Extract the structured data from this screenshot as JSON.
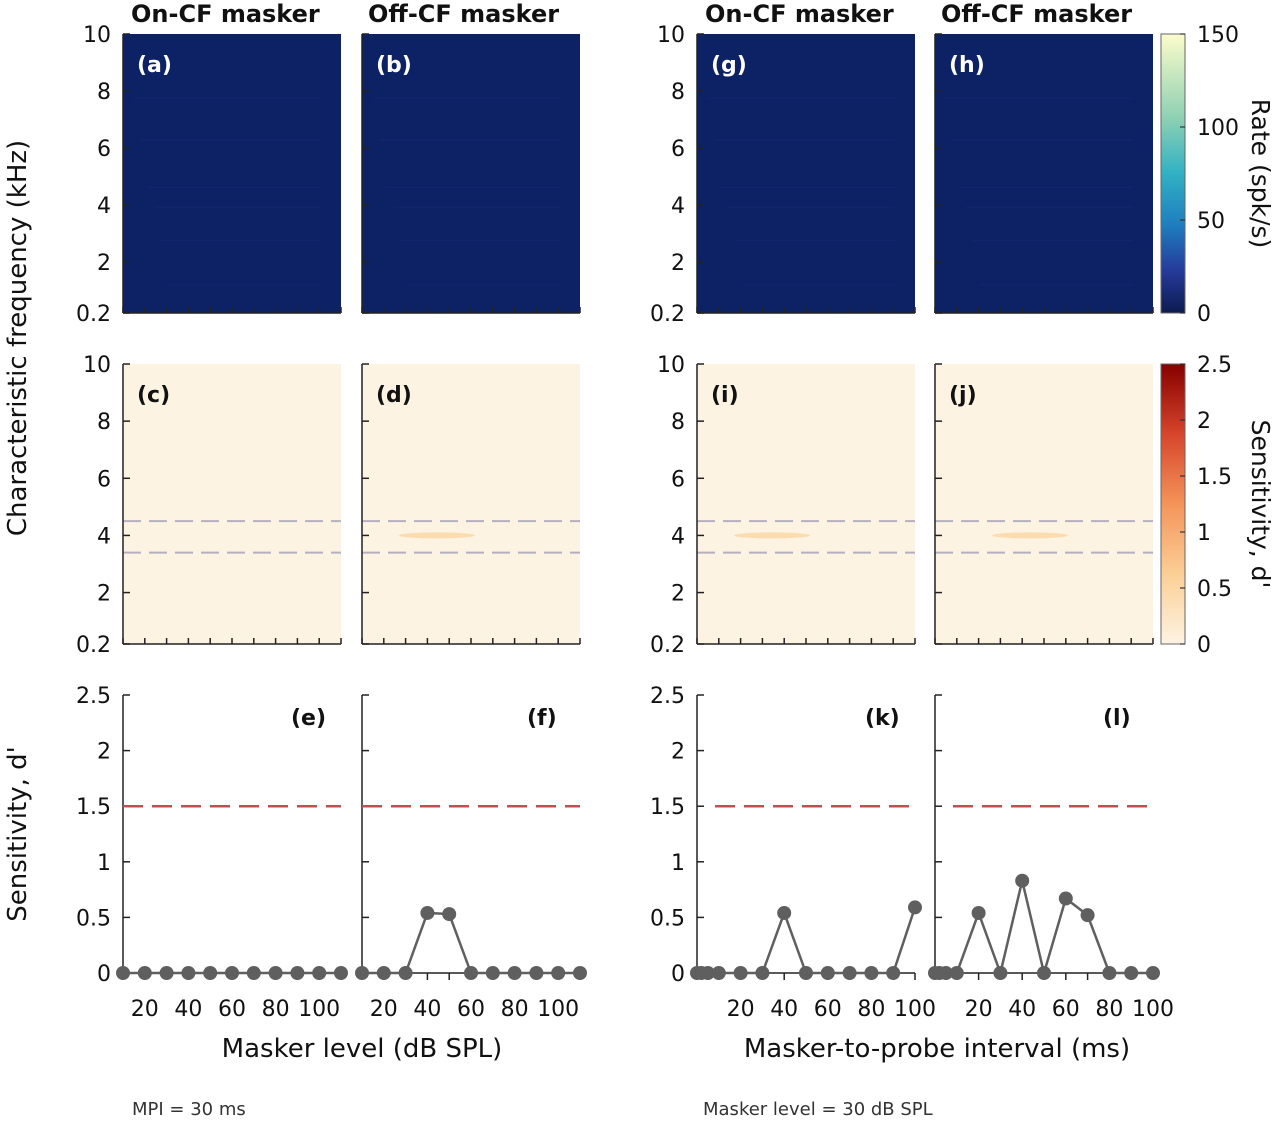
{
  "notes": {
    "left": "MPI = 30 ms",
    "right": "Masker level = 30 dB SPL"
  },
  "labels": {
    "col_on": "On-CF masker",
    "col_off": "Off-CF masker",
    "ylabel_cf": "Characteristic frequency (kHz)",
    "ylabel_sens": "Sensitivity, d'",
    "xlabel_left": "Masker level (dB SPL)",
    "xlabel_right": "Masker-to-probe interval (ms)",
    "cbar_rate": "Rate (spk/s)",
    "cbar_sens": "Sensitivity, d'"
  },
  "colors": {
    "rate_bg": "#0d2165",
    "sens_bg": "#fdf3e3",
    "line": "#5f5f5f",
    "threshold": "#c0504d",
    "band": "#b4b0bf"
  },
  "chart_data": [
    {
      "panel": "a",
      "type": "heatmap",
      "column_title": "On-CF masker",
      "ylabel": "Characteristic frequency (kHz)",
      "yticks": [
        "0.2",
        "2",
        "4",
        "6",
        "8",
        "10"
      ],
      "ylim": [
        0.2,
        10
      ],
      "xlim": [
        10,
        110
      ],
      "value": "approximately 0 across the panel",
      "colorbar": {
        "label": "Rate (spk/s)",
        "range": [
          0,
          150
        ],
        "ticks": [
          "0",
          "50",
          "100",
          "150"
        ]
      }
    },
    {
      "panel": "b",
      "type": "heatmap",
      "column_title": "Off-CF masker",
      "ylim": [
        0.2,
        10
      ],
      "xlim": [
        10,
        110
      ],
      "value": "approximately 0 across the panel",
      "colorbar": {
        "label": "Rate (spk/s)",
        "range": [
          0,
          150
        ]
      }
    },
    {
      "panel": "g",
      "type": "heatmap",
      "column_title": "On-CF masker",
      "yticks": [
        "0.2",
        "2",
        "4",
        "6",
        "8",
        "10"
      ],
      "ylim": [
        0.2,
        10
      ],
      "xlim": [
        0,
        100
      ],
      "value": "approximately 0 across the panel",
      "colorbar": {
        "label": "Rate (spk/s)",
        "range": [
          0,
          150
        ]
      }
    },
    {
      "panel": "h",
      "type": "heatmap",
      "column_title": "Off-CF masker",
      "ylim": [
        0.2,
        10
      ],
      "xlim": [
        0,
        100
      ],
      "value": "approximately 0 across the panel",
      "colorbar": {
        "label": "Rate (spk/s)",
        "range": [
          0,
          150
        ],
        "ticks": [
          "0",
          "50",
          "100",
          "150"
        ]
      }
    },
    {
      "panel": "c",
      "type": "heatmap",
      "ylabel": "Characteristic frequency (kHz)",
      "yticks": [
        "0.2",
        "2",
        "4",
        "6",
        "8",
        "10"
      ],
      "ylim": [
        0.2,
        10
      ],
      "xlim": [
        10,
        110
      ],
      "value": "approximately 0",
      "band_lines_khz": [
        3.4,
        4.5
      ],
      "colorbar": {
        "label": "Sensitivity, d'",
        "range": [
          0,
          2.5
        ],
        "ticks": [
          "0",
          "0.5",
          "1",
          "1.5",
          "2",
          "2.5"
        ]
      }
    },
    {
      "panel": "d",
      "type": "heatmap",
      "ylim": [
        0.2,
        10
      ],
      "xlim": [
        10,
        110
      ],
      "value": "approximately 0, faint patch near 4 kHz",
      "band_lines_khz": [
        3.4,
        4.5
      ],
      "colorbar": {
        "label": "Sensitivity, d'",
        "range": [
          0,
          2.5
        ]
      }
    },
    {
      "panel": "i",
      "type": "heatmap",
      "yticks": [
        "0.2",
        "2",
        "4",
        "6",
        "8",
        "10"
      ],
      "ylim": [
        0.2,
        10
      ],
      "xlim": [
        0,
        100
      ],
      "value": "approximately 0, faint patch near 4 kHz",
      "band_lines_khz": [
        3.4,
        4.5
      ],
      "colorbar": {
        "label": "Sensitivity, d'",
        "range": [
          0,
          2.5
        ]
      }
    },
    {
      "panel": "j",
      "type": "heatmap",
      "ylim": [
        0.2,
        10
      ],
      "xlim": [
        0,
        100
      ],
      "value": "approximately 0, faint patches near 4 kHz",
      "band_lines_khz": [
        3.4,
        4.5
      ],
      "colorbar": {
        "label": "Sensitivity, d'",
        "range": [
          0,
          2.5
        ],
        "ticks": [
          "0",
          "0.5",
          "1",
          "1.5",
          "2",
          "2.5"
        ]
      }
    },
    {
      "panel": "e",
      "type": "line",
      "ylabel": "Sensitivity, d'",
      "x": [
        10,
        20,
        30,
        40,
        50,
        60,
        70,
        80,
        90,
        100,
        110
      ],
      "y": [
        0,
        0,
        0,
        0,
        0,
        0,
        0,
        0,
        0,
        0,
        0
      ],
      "threshold": 1.5,
      "ylim": [
        0,
        2.5
      ],
      "xlim": [
        10,
        110
      ],
      "xticks": [
        "20",
        "40",
        "60",
        "80",
        "100"
      ],
      "yticks": [
        "0",
        "0.5",
        "1",
        "1.5",
        "2",
        "2.5"
      ]
    },
    {
      "panel": "f",
      "type": "line",
      "x": [
        10,
        20,
        30,
        40,
        50,
        60,
        70,
        80,
        90,
        100,
        110
      ],
      "y": [
        0,
        0,
        0,
        0.54,
        0.53,
        0,
        0,
        0,
        0,
        0,
        0
      ],
      "threshold": 1.5,
      "ylim": [
        0,
        2.5
      ],
      "xlim": [
        10,
        110
      ],
      "xticks": [
        "20",
        "40",
        "60",
        "80",
        "100"
      ]
    },
    {
      "panel": "k",
      "type": "line",
      "x": [
        0,
        2,
        5,
        10,
        20,
        30,
        40,
        50,
        60,
        70,
        80,
        90,
        100
      ],
      "y": [
        0,
        0,
        0,
        0,
        0,
        0,
        0.54,
        0,
        0,
        0,
        0,
        0,
        0.59
      ],
      "threshold": 1.5,
      "ylim": [
        0,
        2.5
      ],
      "xlim": [
        0,
        100
      ],
      "xticks": [
        "20",
        "40",
        "60",
        "80",
        "100"
      ],
      "yticks": [
        "0",
        "0.5",
        "1",
        "1.5",
        "2",
        "2.5"
      ]
    },
    {
      "panel": "l",
      "type": "line",
      "x": [
        0,
        2,
        5,
        10,
        20,
        30,
        40,
        50,
        60,
        70,
        80,
        90,
        100
      ],
      "y": [
        0,
        0,
        0,
        0,
        0.54,
        0,
        0.83,
        0,
        0.67,
        0.52,
        0,
        0,
        0
      ],
      "threshold": 1.5,
      "ylim": [
        0,
        2.5
      ],
      "xlim": [
        0,
        100
      ],
      "xticks": [
        "20",
        "40",
        "60",
        "80",
        "100"
      ]
    }
  ]
}
